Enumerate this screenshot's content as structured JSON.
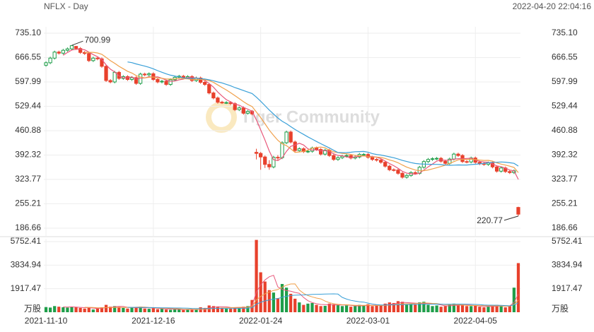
{
  "chart_data": {
    "type": "candlestick",
    "title": "NFLX - Day",
    "timestamp": "2022-04-20 22:04:16",
    "watermark": "Tiger Community",
    "up_color": "#1f9e4a",
    "down_color": "#e8412c",
    "categories": [
      "2021-11-10",
      null,
      null,
      null,
      null,
      null,
      null,
      null,
      null,
      null,
      null,
      null,
      null,
      null,
      null,
      null,
      null,
      null,
      null,
      null,
      null,
      null,
      null,
      null,
      null,
      "2021-12-16",
      null,
      null,
      null,
      null,
      null,
      null,
      null,
      null,
      null,
      null,
      null,
      null,
      null,
      null,
      null,
      null,
      null,
      null,
      null,
      null,
      null,
      null,
      null,
      null,
      "2022-01-24",
      null,
      null,
      null,
      null,
      null,
      null,
      null,
      null,
      null,
      null,
      null,
      null,
      null,
      null,
      null,
      null,
      null,
      null,
      null,
      null,
      null,
      null,
      null,
      null,
      "2022-03-01",
      null,
      null,
      null,
      null,
      null,
      null,
      null,
      null,
      null,
      null,
      null,
      null,
      null,
      null,
      null,
      null,
      null,
      null,
      null,
      null,
      null,
      null,
      null,
      null,
      "2022-04-05",
      null,
      null,
      null,
      null,
      null,
      null,
      null,
      null,
      null,
      null
    ],
    "open": [
      645,
      652,
      665,
      682,
      679,
      687,
      691,
      698,
      692,
      681,
      678,
      658,
      665,
      663,
      642,
      602,
      598,
      625,
      608,
      613,
      605,
      610,
      594,
      620,
      618,
      621,
      605,
      598,
      600,
      591,
      604,
      611,
      614,
      610,
      613,
      602,
      609,
      597,
      591,
      567,
      553,
      541,
      540,
      540,
      537,
      520,
      525,
      510,
      515,
      400,
      397,
      387,
      366,
      359,
      386,
      385,
      427,
      457,
      429,
      405,
      410,
      402,
      403,
      412,
      408,
      395,
      406,
      391,
      380,
      385,
      389,
      391,
      384,
      387,
      394,
      394,
      386,
      380,
      378,
      372,
      361,
      351,
      350,
      341,
      330,
      335,
      343,
      341,
      358,
      374,
      380,
      382,
      383,
      375,
      369,
      381,
      395,
      391,
      374,
      373,
      384,
      372,
      368,
      366,
      370,
      359,
      347,
      356,
      346,
      343,
      245
    ],
    "high": [
      656,
      669,
      686,
      686,
      691,
      695,
      700.99,
      699,
      696,
      685,
      682,
      669,
      669,
      667,
      646,
      606,
      629,
      629,
      617,
      617,
      614,
      614,
      624,
      624,
      625,
      625,
      609,
      604,
      604,
      608,
      615,
      618,
      618,
      617,
      617,
      613,
      613,
      601,
      595,
      571,
      557,
      545,
      544,
      544,
      541,
      529,
      529,
      519,
      519,
      410,
      401,
      391,
      378,
      390,
      392,
      431,
      461,
      461,
      433,
      414,
      414,
      407,
      416,
      416,
      412,
      410,
      410,
      395,
      389,
      393,
      395,
      395,
      391,
      398,
      398,
      398,
      390,
      384,
      382,
      376,
      365,
      355,
      354,
      345,
      339,
      347,
      347,
      362,
      378,
      384,
      386,
      387,
      387,
      379,
      385,
      399,
      399,
      395,
      378,
      388,
      388,
      376,
      372,
      374,
      374,
      363,
      360,
      360,
      350,
      352,
      247
    ],
    "low": [
      641,
      648,
      661,
      675,
      675,
      683,
      687,
      688,
      677,
      674,
      654,
      654,
      659,
      638,
      598,
      594,
      594,
      604,
      604,
      601,
      601,
      590,
      590,
      614,
      614,
      601,
      594,
      594,
      587,
      587,
      600,
      607,
      606,
      606,
      598,
      598,
      593,
      587,
      563,
      549,
      537,
      536,
      536,
      533,
      516,
      516,
      506,
      506,
      504,
      380,
      351,
      356,
      351,
      355,
      378,
      381,
      423,
      425,
      401,
      401,
      398,
      398,
      399,
      404,
      391,
      391,
      387,
      376,
      376,
      381,
      385,
      380,
      380,
      383,
      390,
      382,
      376,
      374,
      368,
      357,
      347,
      346,
      337,
      326,
      326,
      331,
      337,
      337,
      354,
      370,
      376,
      378,
      371,
      365,
      365,
      377,
      387,
      370,
      369,
      369,
      368,
      364,
      362,
      362,
      355,
      343,
      343,
      342,
      339,
      339,
      220.77
    ],
    "close": [
      652,
      665,
      682,
      679,
      687,
      691,
      700,
      692,
      681,
      678,
      658,
      665,
      663,
      642,
      602,
      598,
      625,
      608,
      613,
      605,
      610,
      594,
      620,
      618,
      621,
      605,
      598,
      600,
      591,
      604,
      611,
      614,
      610,
      613,
      602,
      609,
      597,
      591,
      567,
      553,
      541,
      540,
      540,
      537,
      520,
      525,
      510,
      515,
      508,
      397,
      387,
      366,
      359,
      386,
      385,
      427,
      457,
      429,
      405,
      410,
      402,
      403,
      412,
      408,
      395,
      406,
      391,
      380,
      385,
      389,
      391,
      384,
      387,
      394,
      394,
      386,
      380,
      378,
      372,
      361,
      351,
      350,
      341,
      330,
      335,
      343,
      341,
      358,
      374,
      380,
      382,
      383,
      375,
      369,
      381,
      395,
      391,
      374,
      373,
      384,
      372,
      368,
      366,
      370,
      359,
      347,
      356,
      346,
      343,
      348,
      226
    ],
    "volume": [
      420,
      380,
      500,
      450,
      400,
      380,
      450,
      400,
      350,
      300,
      380,
      220,
      300,
      400,
      600,
      450,
      500,
      420,
      350,
      300,
      400,
      380,
      450,
      300,
      280,
      320,
      250,
      300,
      220,
      200,
      250,
      230,
      180,
      250,
      200,
      220,
      400,
      350,
      550,
      500,
      450,
      380,
      300,
      320,
      400,
      350,
      450,
      500,
      1000,
      5890,
      3250,
      2500,
      1800,
      1600,
      1150,
      2300,
      2000,
      1500,
      1100,
      800,
      600,
      700,
      750,
      600,
      500,
      520,
      700,
      650,
      600,
      500,
      550,
      450,
      500,
      600,
      550,
      650,
      500,
      550,
      600,
      700,
      800,
      750,
      900,
      850,
      600,
      700,
      650,
      800,
      850,
      600,
      500,
      550,
      450,
      500,
      600,
      700,
      550,
      600,
      500,
      500,
      550,
      450,
      400,
      450,
      550,
      600,
      500,
      400,
      500,
      2000,
      4000
    ],
    "ylim": [
      186.66,
      735.1
    ],
    "yticks": [
      {
        "value": 735.1,
        "label": "735.10"
      },
      666.55,
      597.99,
      529.44,
      460.88,
      392.32,
      323.77,
      255.21,
      186.66
    ],
    "volume_ylim": [
      0,
      5752.41
    ],
    "volume_yticks": [
      1917.47,
      3834.94,
      5752.41
    ],
    "volume_unit": "万股",
    "grid": true
  }
}
